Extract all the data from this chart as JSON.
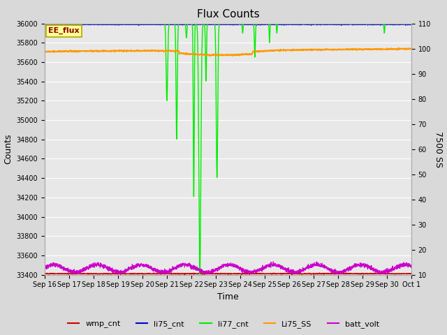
{
  "title": "Flux Counts",
  "xlabel": "Time",
  "ylabel_left": "Counts",
  "ylabel_right": "7500 SS",
  "annotation_text": "EE_flux",
  "annotation_bg": "#ffff99",
  "annotation_border": "#aaaa00",
  "ylim_left": [
    33400,
    36000
  ],
  "ylim_right": [
    10,
    110
  ],
  "yticks_left": [
    33400,
    33600,
    33800,
    34000,
    34200,
    34400,
    34600,
    34800,
    35000,
    35200,
    35400,
    35600,
    35800,
    36000
  ],
  "yticks_right": [
    10,
    20,
    30,
    40,
    50,
    60,
    70,
    80,
    90,
    100,
    110
  ],
  "bg_color": "#d9d9d9",
  "plot_bg": "#e8e8e8",
  "grid_color": "white",
  "colors": {
    "wmp_cnt": "#cc0000",
    "li75_cnt": "#0000cc",
    "li77_cnt": "#00ee00",
    "Li75_SS": "#ff9900",
    "batt_volt": "#cc00cc"
  },
  "num_points": 3000,
  "spike_positions": [
    5.0,
    5.4,
    5.8,
    6.1,
    6.35,
    6.6,
    7.05,
    8.1,
    8.6,
    9.2,
    9.5,
    13.9
  ],
  "spike_depths": [
    800,
    1200,
    150,
    1800,
    2600,
    600,
    1600,
    100,
    350,
    200,
    100,
    100
  ],
  "spike_widths": [
    0.03,
    0.025,
    0.02,
    0.02,
    0.04,
    0.02,
    0.03,
    0.015,
    0.02,
    0.015,
    0.015,
    0.015
  ]
}
